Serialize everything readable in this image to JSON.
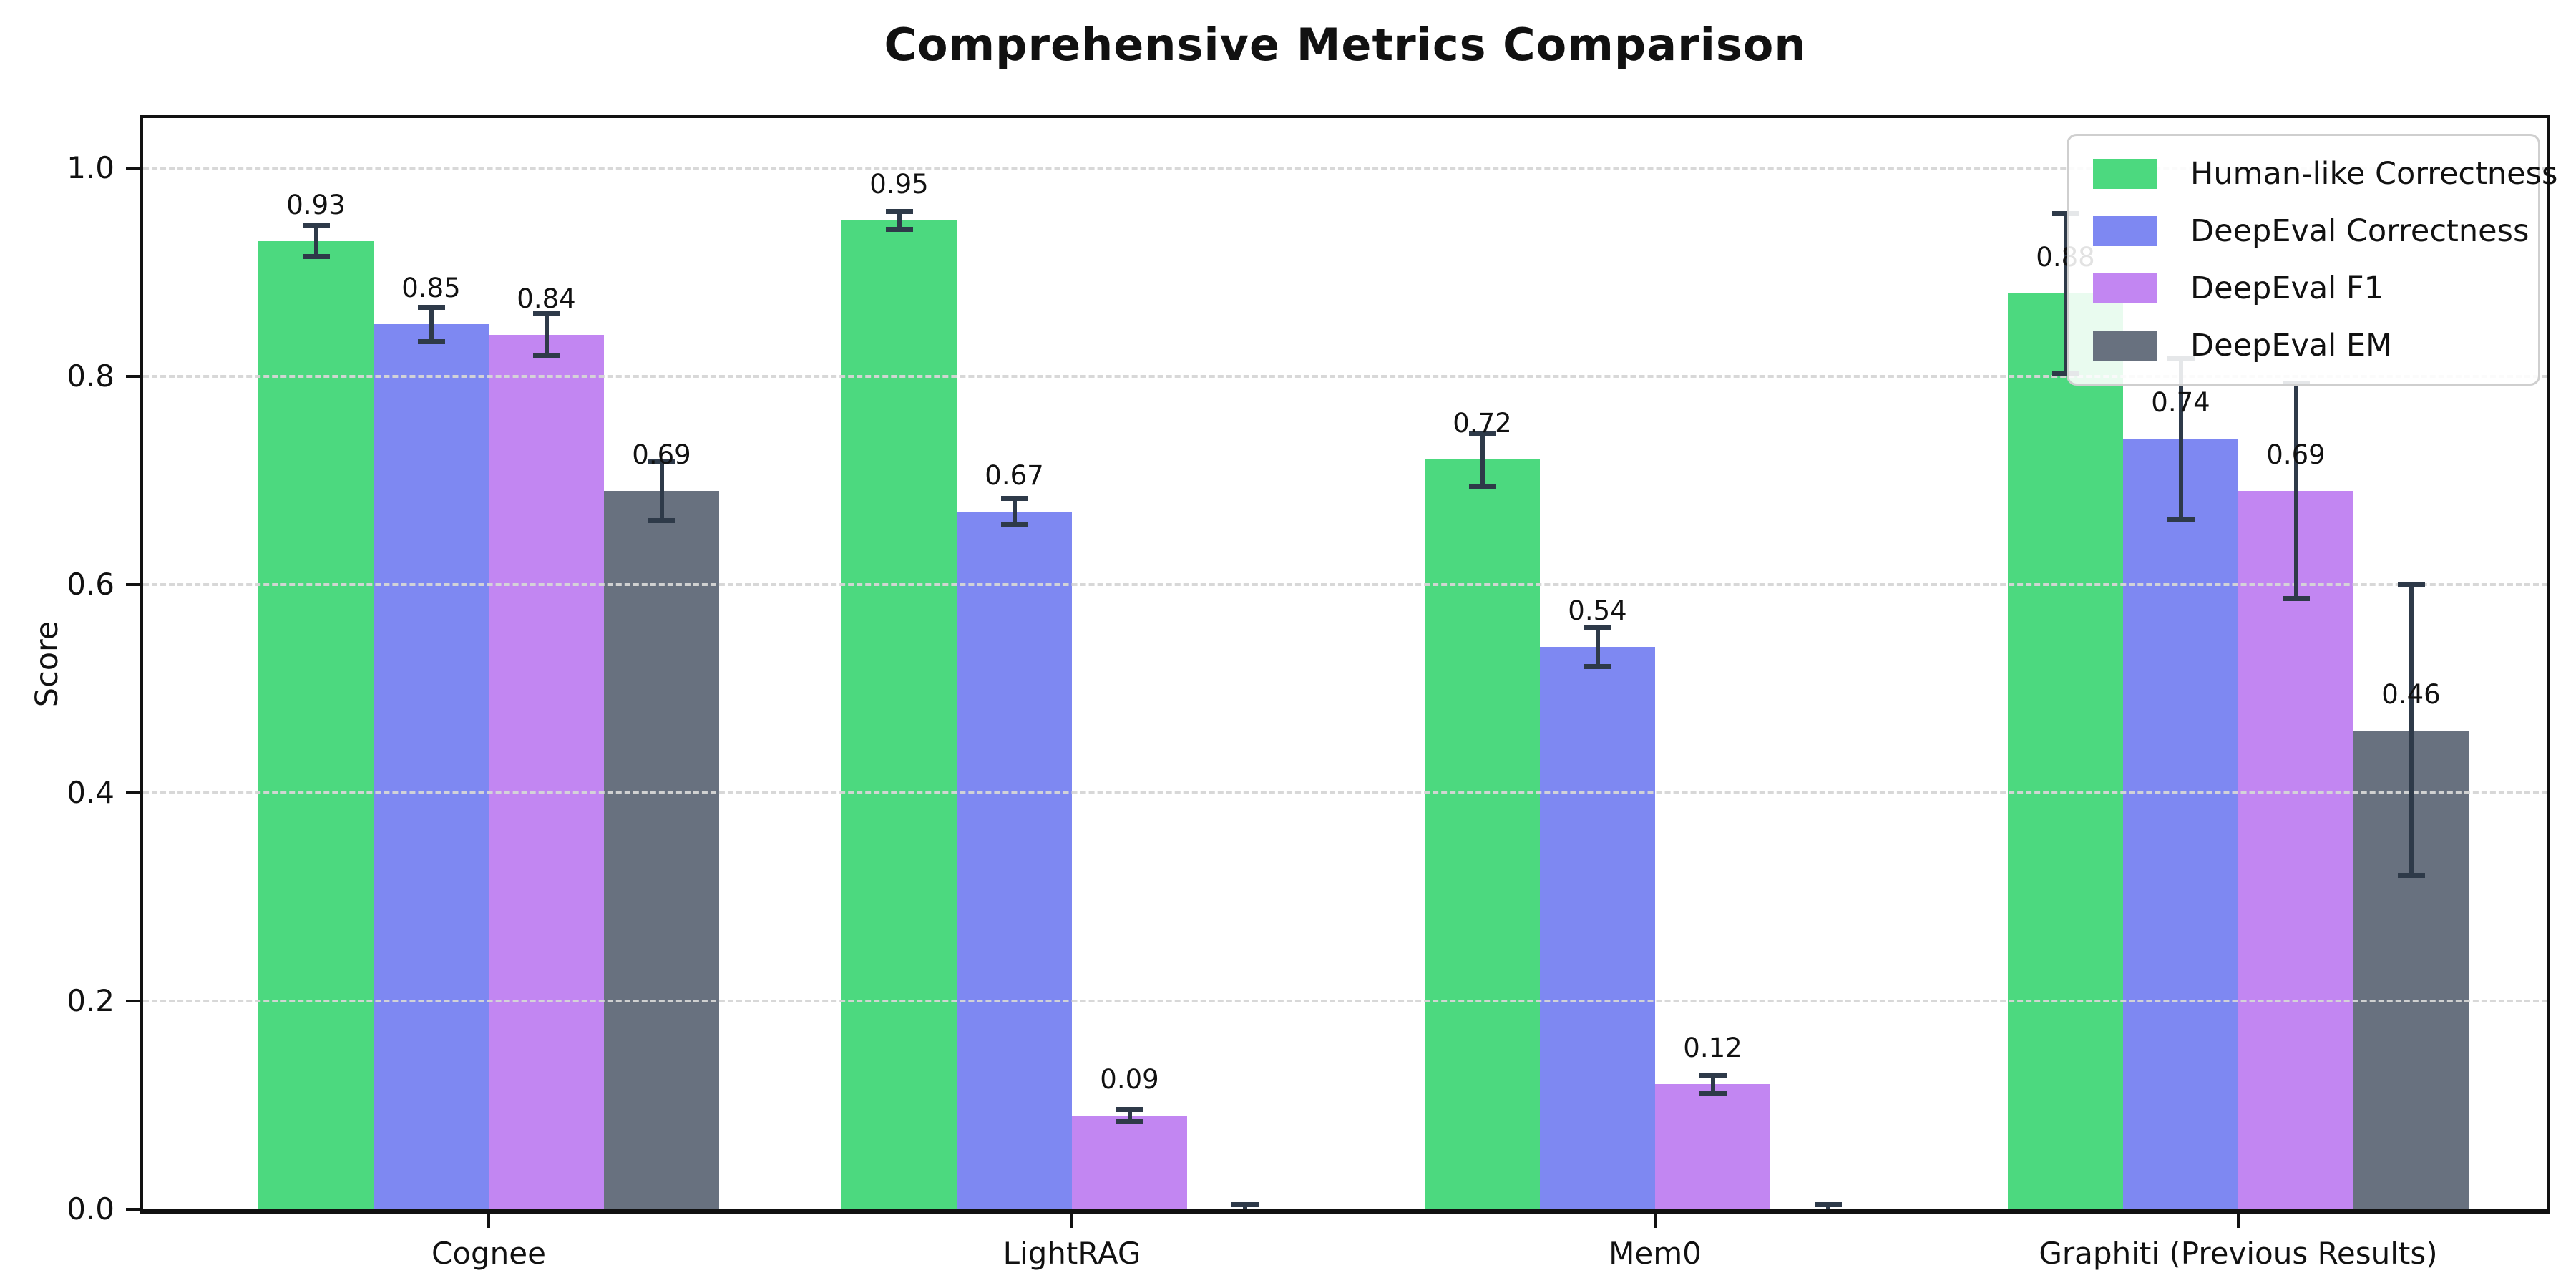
{
  "chart_data": {
    "type": "bar",
    "title": "Comprehensive Metrics Comparison",
    "ylabel": "Score",
    "categories": [
      "Cognee",
      "LightRAG",
      "Mem0",
      "Graphiti (Previous Results)"
    ],
    "yticks": [
      0.0,
      0.2,
      0.4,
      0.6,
      0.8,
      1.0
    ],
    "ytick_labels": [
      "0.0",
      "0.2",
      "0.4",
      "0.6",
      "0.8",
      "1.0"
    ],
    "ylim": [
      0,
      1.048
    ],
    "grid": "horizontal-dashed",
    "legend_position": "upper-right",
    "error_bar_color": "#2e3a49",
    "series": [
      {
        "name": "Human-like Correctness",
        "color": "#4cd97f",
        "values": [
          0.93,
          0.95,
          0.72,
          0.88
        ],
        "errors": [
          0.015,
          0.009,
          0.026,
          0.077
        ],
        "labels": [
          "0.93",
          "0.95",
          "0.72",
          "0.88"
        ]
      },
      {
        "name": "DeepEval Correctness",
        "color": "#7e88f2",
        "values": [
          0.85,
          0.67,
          0.54,
          0.74
        ],
        "errors": [
          0.017,
          0.013,
          0.019,
          0.078
        ],
        "labels": [
          "0.85",
          "0.67",
          "0.54",
          "0.74"
        ]
      },
      {
        "name": "DeepEval F1",
        "color": "#c286f2",
        "values": [
          0.84,
          0.09,
          0.12,
          0.69
        ],
        "errors": [
          0.021,
          0.006,
          0.009,
          0.104
        ],
        "labels": [
          "0.84",
          "0.09",
          "0.12",
          "0.69"
        ]
      },
      {
        "name": "DeepEval EM",
        "color": "#68717f",
        "values": [
          0.69,
          0.0,
          0.0,
          0.46
        ],
        "errors": [
          0.029,
          0.005,
          0.005,
          0.14
        ],
        "labels": [
          "0.69",
          null,
          null,
          "0.46"
        ]
      }
    ]
  }
}
